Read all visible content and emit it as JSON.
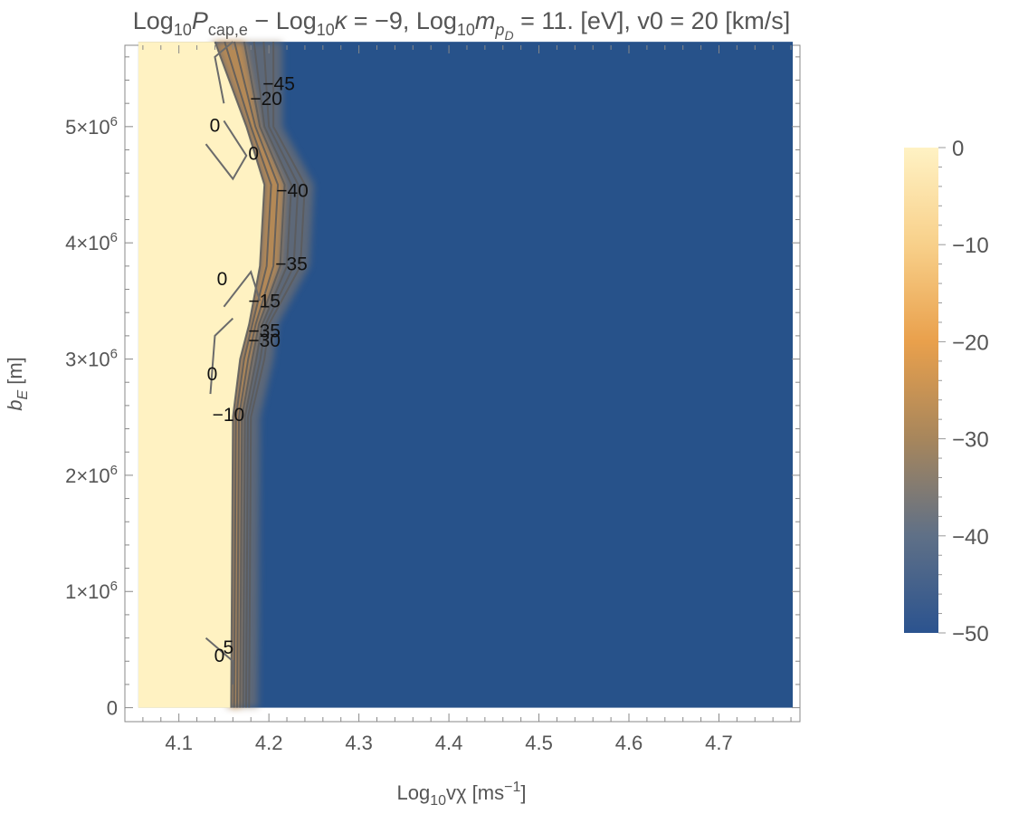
{
  "chart_data": {
    "type": "heatmap",
    "title_parts": {
      "a": "Log",
      "a_sub": "10",
      "a_var": "P",
      "a_var_sub": "cap,e",
      "b": " − Log",
      "b_sub": "10",
      "b_var": "κ",
      "b_rest": " = −9, Log",
      "c_sub": "10",
      "c_var": "m",
      "c_var_sub": "p",
      "c_var_subsub": "D",
      "c_rest": " = 11. [eV], v0 = 20 [km/s]"
    },
    "xlabel_parts": {
      "pre": "Log",
      "sub": "10",
      "main": "vχ [ms",
      "sup": "−1",
      "post": "]"
    },
    "ylabel_parts": {
      "pre": "b",
      "sub": "E",
      "post": " [m]"
    },
    "xlim": [
      4.04,
      4.79
    ],
    "ylim": [
      -120000,
      5700000
    ],
    "plot_x_range": [
      4.055,
      4.782
    ],
    "plot_y_range": [
      0,
      5730000
    ],
    "xticks": [
      {
        "v": 4.1,
        "label": "4.1"
      },
      {
        "v": 4.2,
        "label": "4.2"
      },
      {
        "v": 4.3,
        "label": "4.3"
      },
      {
        "v": 4.4,
        "label": "4.4"
      },
      {
        "v": 4.5,
        "label": "4.5"
      },
      {
        "v": 4.6,
        "label": "4.6"
      },
      {
        "v": 4.7,
        "label": "4.7"
      }
    ],
    "yticks": [
      {
        "v": 0,
        "m": "",
        "e": "",
        "plain": "0"
      },
      {
        "v": 1000000,
        "m": "1×10",
        "e": "6"
      },
      {
        "v": 2000000,
        "m": "2×10",
        "e": "6"
      },
      {
        "v": 3000000,
        "m": "3×10",
        "e": "6"
      },
      {
        "v": 4000000,
        "m": "4×10",
        "e": "6"
      },
      {
        "v": 5000000,
        "m": "5×10",
        "e": "6"
      }
    ],
    "colorbar": {
      "min": -50,
      "max": 0,
      "ticks": [
        {
          "v": 0,
          "label": "0"
        },
        {
          "v": -10,
          "label": "−10"
        },
        {
          "v": -20,
          "label": "−20"
        },
        {
          "v": -30,
          "label": "−30"
        },
        {
          "v": -40,
          "label": "−40"
        },
        {
          "v": -50,
          "label": "−50"
        }
      ],
      "stops": [
        {
          "v": 0,
          "color": "#fff2c4"
        },
        {
          "v": -10,
          "color": "#f8d08a"
        },
        {
          "v": -20,
          "color": "#e9a04c"
        },
        {
          "v": -30,
          "color": "#a7865c"
        },
        {
          "v": -40,
          "color": "#5f7087"
        },
        {
          "v": -50,
          "color": "#2b538f"
        }
      ]
    },
    "high_region_color": "#fff2c2",
    "low_region_color": "#27528a",
    "boundary_profile": [
      {
        "y": 0,
        "x_left": 4.158,
        "x_right": 4.178
      },
      {
        "y": 2500000,
        "x_left": 4.16,
        "x_right": 4.18
      },
      {
        "y": 3000000,
        "x_left": 4.168,
        "x_right": 4.195
      },
      {
        "y": 3300000,
        "x_left": 4.178,
        "x_right": 4.2
      },
      {
        "y": 3800000,
        "x_left": 4.19,
        "x_right": 4.235
      },
      {
        "y": 4500000,
        "x_left": 4.195,
        "x_right": 4.24
      },
      {
        "y": 5000000,
        "x_left": 4.175,
        "x_right": 4.205
      },
      {
        "y": 5730000,
        "x_left": 4.14,
        "x_right": 4.205
      }
    ],
    "contour_labels": [
      {
        "x": 4.211,
        "y": 5370000,
        "text": "−45"
      },
      {
        "x": 4.197,
        "y": 5240000,
        "text": "−20"
      },
      {
        "x": 4.14,
        "y": 5010000,
        "text": "0"
      },
      {
        "x": 4.183,
        "y": 4770000,
        "text": "0"
      },
      {
        "x": 4.226,
        "y": 4450000,
        "text": "−40"
      },
      {
        "x": 4.225,
        "y": 3820000,
        "text": "−35"
      },
      {
        "x": 4.148,
        "y": 3690000,
        "text": "0"
      },
      {
        "x": 4.195,
        "y": 3500000,
        "text": "−15"
      },
      {
        "x": 4.195,
        "y": 3240000,
        "text": "−35"
      },
      {
        "x": 4.195,
        "y": 3160000,
        "text": "−30"
      },
      {
        "x": 4.137,
        "y": 2870000,
        "text": "0"
      },
      {
        "x": 4.155,
        "y": 2520000,
        "text": "−10"
      },
      {
        "x": 4.145,
        "y": 450000,
        "text": "0"
      },
      {
        "x": 4.155,
        "y": 520000,
        "text": "5"
      }
    ]
  }
}
